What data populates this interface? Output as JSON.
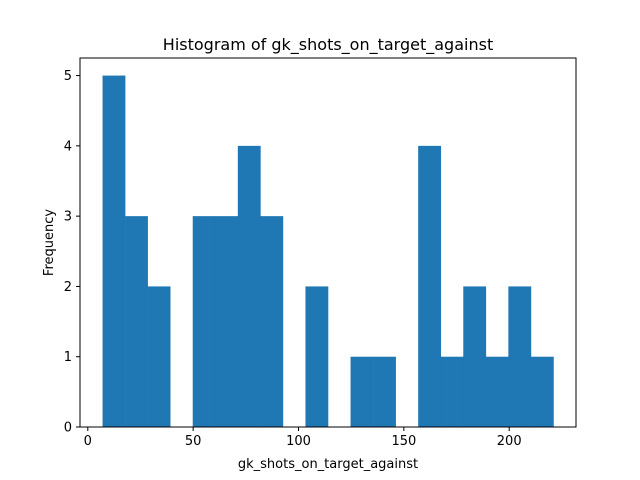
{
  "chart_data": {
    "type": "bar",
    "title": "Histogram of gk_shots_on_target_against",
    "xlabel": "gk_shots_on_target_against",
    "ylabel": "Frequency",
    "bin_start": 7,
    "bin_width": 10.7,
    "values": [
      5,
      3,
      2,
      0,
      3,
      3,
      4,
      3,
      0,
      2,
      0,
      1,
      1,
      0,
      4,
      1,
      2,
      1,
      2,
      1
    ],
    "xlim": [
      -3.7,
      231.7
    ],
    "ylim": [
      0,
      5.25
    ],
    "xticks": [
      0,
      50,
      100,
      150,
      200
    ],
    "yticks": [
      0,
      1,
      2,
      3,
      4,
      5
    ],
    "bar_color": "#1f77b4",
    "grid": false
  }
}
